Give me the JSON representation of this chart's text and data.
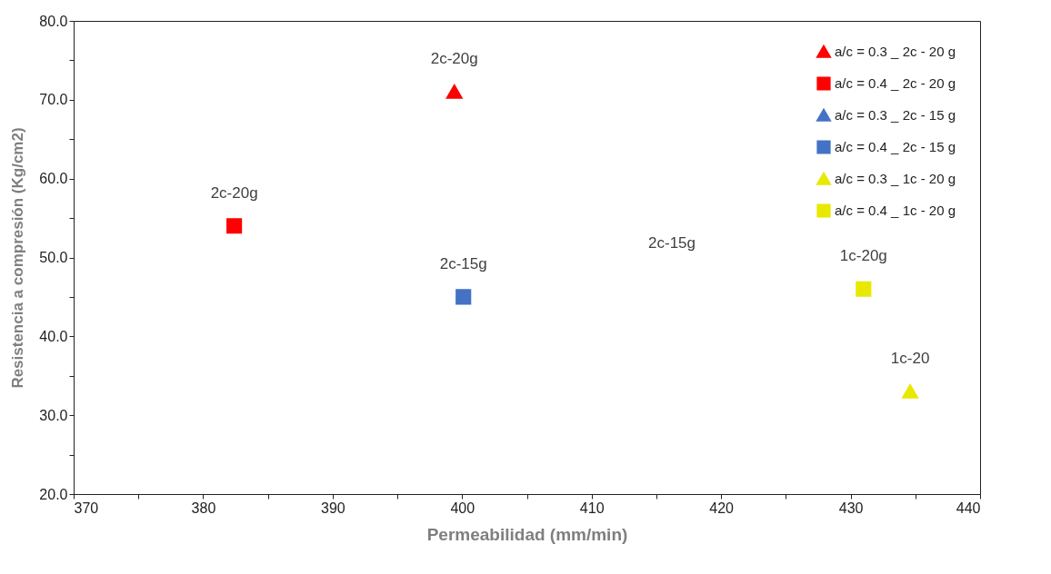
{
  "chart_data": {
    "type": "scatter",
    "xlabel": "Permeabilidad (mm/min)",
    "ylabel": "Resistencia a compresión  (Kg/cm2)",
    "xlim": [
      370,
      440
    ],
    "ylim": [
      20,
      80
    ],
    "xticks": [
      370,
      {
        "value": 375,
        "label": null
      },
      380,
      {
        "value": 385,
        "label": null
      },
      390,
      {
        "value": 395,
        "label": null
      },
      400,
      {
        "value": 405,
        "label": null
      },
      410,
      {
        "value": 415,
        "label": null
      },
      420,
      {
        "value": 425,
        "label": null
      },
      430,
      {
        "value": 435,
        "label": null
      },
      440
    ],
    "yticks": [
      {
        "value": 20,
        "label": "20.0"
      },
      {
        "value": 25,
        "label": null
      },
      {
        "value": 30,
        "label": "30.0"
      },
      {
        "value": 35,
        "label": null
      },
      {
        "value": 40,
        "label": "40.0"
      },
      {
        "value": 45,
        "label": null
      },
      {
        "value": 50,
        "label": "50.0"
      },
      {
        "value": 55,
        "label": null
      },
      {
        "value": 60,
        "label": "60.0"
      },
      {
        "value": 65,
        "label": null
      },
      {
        "value": 70,
        "label": "70.0"
      },
      {
        "value": 75,
        "label": null
      },
      {
        "value": 80,
        "label": "80.0"
      }
    ],
    "grid": false,
    "legend": "top right",
    "series": [
      {
        "name": "a/c = 0.3 _ 2c - 20 g",
        "color": "#ff0000",
        "marker": "triangle",
        "x": [
          399.4
        ],
        "values": [
          71
        ]
      },
      {
        "name": "a/c = 0.4 _ 2c - 20 g",
        "color": "#ff0000",
        "marker": "square",
        "x": [
          382.4
        ],
        "values": [
          54
        ]
      },
      {
        "name": "a/c = 0.3 _ 2c - 15 g",
        "color": "#4472c4",
        "marker": "triangle"
      },
      {
        "name": "a/c = 0.4 _ 2c - 15 g",
        "color": "#4472c4",
        "marker": "square",
        "x": [
          400.1
        ],
        "values": [
          45
        ]
      },
      {
        "name": "a/c = 0.3 _ 1c - 20 g",
        "color": "#e8e800",
        "marker": "triangle",
        "x": [
          434.6
        ],
        "values": [
          33
        ]
      },
      {
        "name": "a/c = 0.4 _ 1c - 20 g",
        "color": "#e8e800",
        "marker": "square",
        "x": [
          431
        ],
        "values": [
          46
        ]
      }
    ],
    "annotations": [
      {
        "text": "2c-20g",
        "x": 399.4,
        "y": 71
      },
      {
        "text": "2c-20g",
        "x": 382.4,
        "y": 54
      },
      "2c-15g",
      {
        "text": "2c-15g",
        "x": 400.1,
        "y": 45
      },
      {
        "text": "1c-20",
        "x": 434.6,
        "y": 33
      },
      {
        "text": "1c-20g",
        "x": 431,
        "y": 46
      }
    ]
  }
}
